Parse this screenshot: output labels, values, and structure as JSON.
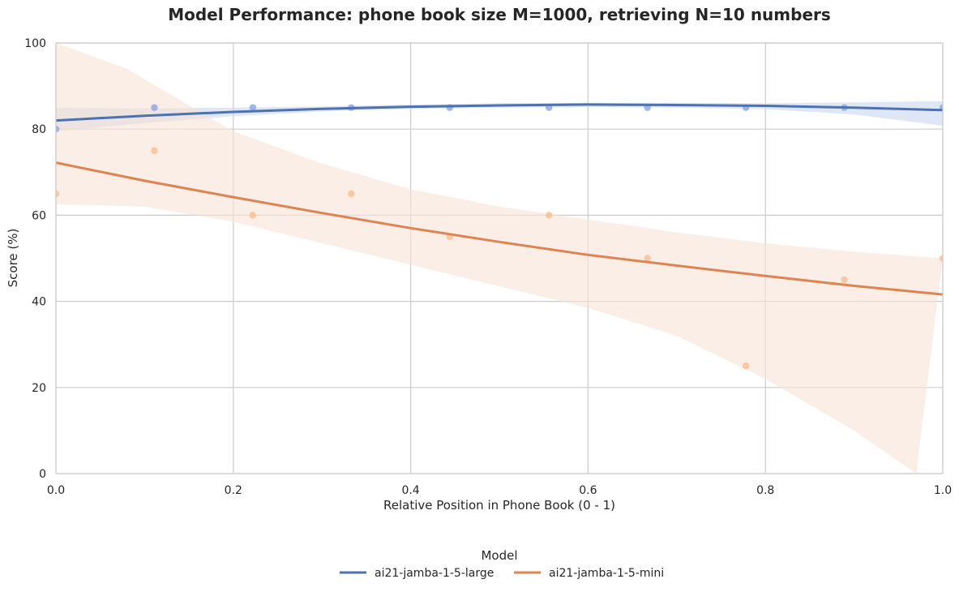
{
  "chart_data": {
    "type": "scatter",
    "title": "Model Performance: phone book size M=1000, retrieving N=10 numbers",
    "xlabel": "Relative Position in Phone Book (0 - 1)",
    "ylabel": "Score (%)",
    "xlim": [
      0,
      1
    ],
    "ylim": [
      0,
      100
    ],
    "xticks": [
      "0.0",
      "0.2",
      "0.4",
      "0.6",
      "0.8",
      "1.0"
    ],
    "yticks": [
      "0",
      "20",
      "40",
      "60",
      "80",
      "100"
    ],
    "grid": true,
    "legend": {
      "title": "Model",
      "placement": "bottom-center"
    },
    "series": [
      {
        "name": "ai21-jamba-1-5-large",
        "color": "#4c72b0",
        "point_color": "#8fa8e8",
        "band_color": "#c9d6ee",
        "points": [
          [
            0.0,
            80
          ],
          [
            0.111,
            85
          ],
          [
            0.222,
            85
          ],
          [
            0.333,
            85
          ],
          [
            0.444,
            85
          ],
          [
            0.556,
            85
          ],
          [
            0.667,
            85
          ],
          [
            0.778,
            85
          ],
          [
            0.889,
            85
          ],
          [
            1.0,
            85
          ]
        ],
        "fit": [
          [
            0.0,
            82.0
          ],
          [
            0.1,
            83.1
          ],
          [
            0.2,
            84.0
          ],
          [
            0.3,
            84.7
          ],
          [
            0.4,
            85.2
          ],
          [
            0.5,
            85.5
          ],
          [
            0.6,
            85.7
          ],
          [
            0.7,
            85.6
          ],
          [
            0.8,
            85.4
          ],
          [
            0.9,
            85.0
          ],
          [
            1.0,
            84.4
          ]
        ],
        "band_upper": [
          [
            0.0,
            85.0
          ],
          [
            0.1,
            84.8
          ],
          [
            0.2,
            85.0
          ],
          [
            0.3,
            85.3
          ],
          [
            0.4,
            85.7
          ],
          [
            0.5,
            86.0
          ],
          [
            0.6,
            86.1
          ],
          [
            0.7,
            86.1
          ],
          [
            0.8,
            86.0
          ],
          [
            0.9,
            86.2
          ],
          [
            1.0,
            86.5
          ]
        ],
        "band_lower": [
          [
            0.0,
            79.5
          ],
          [
            0.1,
            81.4
          ],
          [
            0.2,
            83.0
          ],
          [
            0.3,
            84.1
          ],
          [
            0.4,
            84.7
          ],
          [
            0.5,
            85.0
          ],
          [
            0.6,
            85.1
          ],
          [
            0.7,
            85.0
          ],
          [
            0.8,
            84.6
          ],
          [
            0.9,
            83.4
          ],
          [
            1.0,
            80.8
          ]
        ]
      },
      {
        "name": "ai21-jamba-1-5-mini",
        "color": "#dd8452",
        "point_color": "#f9bf96",
        "band_color": "#f7e2d6",
        "points": [
          [
            0.0,
            65
          ],
          [
            0.111,
            75
          ],
          [
            0.222,
            60
          ],
          [
            0.333,
            65
          ],
          [
            0.444,
            55
          ],
          [
            0.556,
            60
          ],
          [
            0.667,
            50
          ],
          [
            0.778,
            25
          ],
          [
            0.889,
            45
          ],
          [
            1.0,
            50
          ]
        ],
        "fit": [
          [
            0.0,
            72.2
          ],
          [
            0.1,
            68.0
          ],
          [
            0.2,
            64.2
          ],
          [
            0.3,
            60.5
          ],
          [
            0.4,
            57.0
          ],
          [
            0.5,
            53.8
          ],
          [
            0.6,
            50.8
          ],
          [
            0.7,
            48.3
          ],
          [
            0.8,
            45.9
          ],
          [
            0.9,
            43.6
          ],
          [
            1.0,
            41.6
          ]
        ],
        "band_upper": [
          [
            0.0,
            100
          ],
          [
            0.08,
            94.0
          ],
          [
            0.15,
            85.5
          ],
          [
            0.2,
            79.5
          ],
          [
            0.3,
            72.0
          ],
          [
            0.4,
            66.0
          ],
          [
            0.5,
            62.0
          ],
          [
            0.6,
            59.0
          ],
          [
            0.7,
            56.0
          ],
          [
            0.8,
            53.5
          ],
          [
            0.9,
            51.5
          ],
          [
            1.0,
            50.0
          ]
        ],
        "band_lower": [
          [
            0.0,
            62.5
          ],
          [
            0.1,
            62.0
          ],
          [
            0.2,
            58.5
          ],
          [
            0.3,
            53.5
          ],
          [
            0.4,
            48.5
          ],
          [
            0.5,
            43.5
          ],
          [
            0.6,
            38.5
          ],
          [
            0.7,
            32.0
          ],
          [
            0.8,
            22.0
          ],
          [
            0.9,
            10.0
          ],
          [
            0.97,
            0.0
          ]
        ]
      }
    ]
  }
}
